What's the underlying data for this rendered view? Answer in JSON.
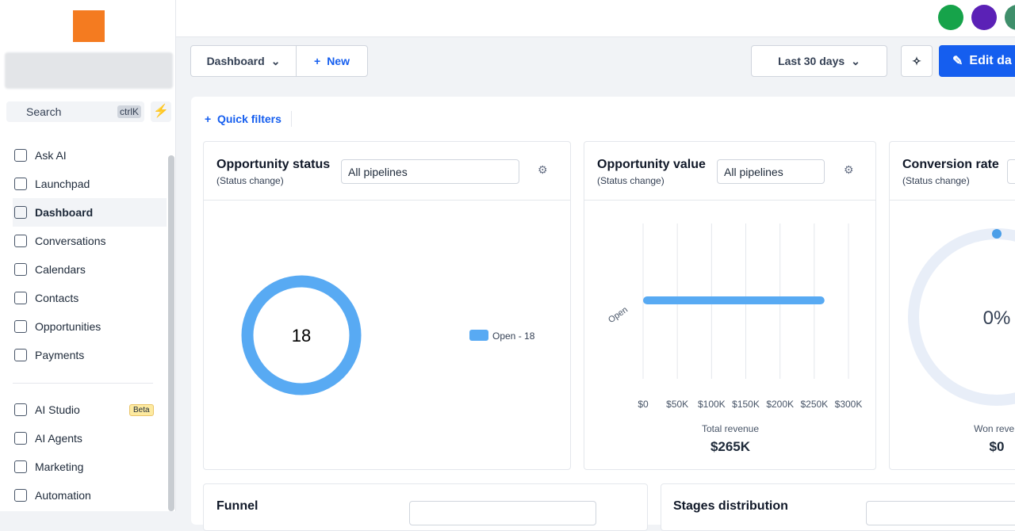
{
  "sidebar": {
    "search": "Search",
    "shortcut": "ctrlK",
    "nav": [
      "Ask AI",
      "Launchpad",
      "Dashboard",
      "Conversations",
      "Calendars",
      "Contacts",
      "Opportunities",
      "Payments"
    ],
    "nav2": [
      {
        "label": "AI Studio",
        "badge": "Beta"
      },
      {
        "label": "AI Agents"
      },
      {
        "label": "Marketing"
      },
      {
        "label": "Automation"
      }
    ]
  },
  "toolbar": {
    "dashboard": "Dashboard",
    "new": "New",
    "range": "Last 30 days",
    "edit": "Edit da"
  },
  "quick_filters": "Quick filters",
  "widgets": {
    "status": {
      "title": "Opportunity status",
      "subtitle": "(Status change)",
      "select": "All pipelines",
      "chart": {
        "type": "pie",
        "categories": [
          "Open"
        ],
        "values": [
          18
        ],
        "color": "#58aaf3",
        "legend": [
          "Open - 18"
        ]
      }
    },
    "value": {
      "title": "Opportunity value",
      "subtitle": "(Status change)",
      "select": "All pipelines",
      "chart": {
        "type": "bar",
        "categories": [
          "Open"
        ],
        "values": [
          265000
        ],
        "color": "#58aaf3",
        "xlim": [
          0,
          300000
        ],
        "xticks": [
          {
            "value": 0,
            "label": "$0"
          },
          {
            "value": 50000,
            "label": "$50K"
          },
          {
            "value": 100000,
            "label": "$100K"
          },
          {
            "value": 150000,
            "label": "$150K"
          },
          {
            "value": 200000,
            "label": "$200K"
          },
          {
            "value": 250000,
            "label": "$250K"
          },
          {
            "value": 300000,
            "label": "$300K"
          }
        ],
        "grid": true
      },
      "total_label": "Total revenue",
      "total": "$265K"
    },
    "conversion": {
      "title": "Conversion rate",
      "subtitle": "(Status change)",
      "chart": {
        "type": "gauge",
        "values": [
          0
        ],
        "value_labels": [
          "0%"
        ],
        "color": "#4a9ee8"
      },
      "total_label": "Won reven",
      "total": "$0"
    },
    "funnel": {
      "title": "Funnel"
    },
    "stages": {
      "title": "Stages distribution"
    }
  }
}
